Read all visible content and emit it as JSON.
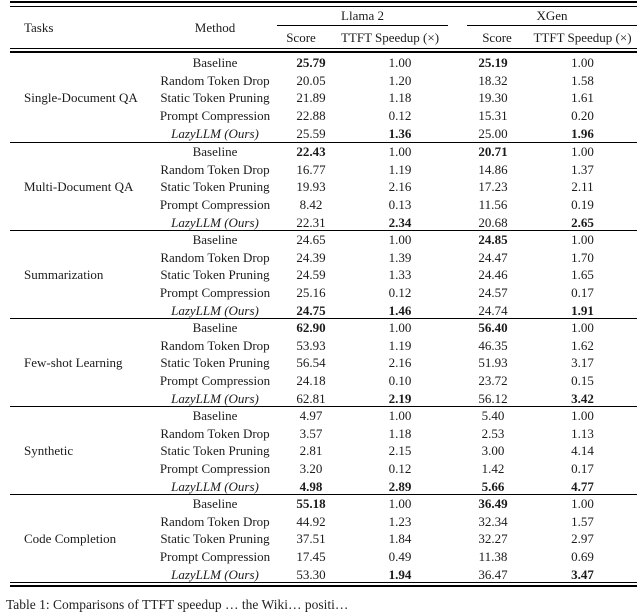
{
  "page": {
    "background": "#ffffff",
    "ink": "#1b1b1b",
    "rule_color": "#000000"
  },
  "header": {
    "tasks": "Tasks",
    "method": "Method",
    "group_llama": "Llama 2",
    "group_xgen": "XGen",
    "score": "Score",
    "ttft": "TTFT Speedup (×)"
  },
  "chart_data": {
    "type": "table",
    "columns": [
      "Tasks",
      "Method",
      "Llama 2 Score",
      "Llama 2 TTFT Speedup (×)",
      "XGen Score",
      "XGen TTFT Speedup (×)"
    ],
    "groups": [
      {
        "task": "Single-Document QA",
        "rows": [
          {
            "method": "Baseline",
            "italic": false,
            "values": [
              "25.79",
              "1.00",
              "25.19",
              "1.00"
            ],
            "bold": [
              true,
              false,
              true,
              false
            ]
          },
          {
            "method": "Random Token Drop",
            "italic": false,
            "values": [
              "20.05",
              "1.20",
              "18.32",
              "1.58"
            ],
            "bold": [
              false,
              false,
              false,
              false
            ]
          },
          {
            "method": "Static Token Pruning",
            "italic": false,
            "values": [
              "21.89",
              "1.18",
              "19.30",
              "1.61"
            ],
            "bold": [
              false,
              false,
              false,
              false
            ]
          },
          {
            "method": "Prompt Compression",
            "italic": false,
            "values": [
              "22.88",
              "0.12",
              "15.31",
              "0.20"
            ],
            "bold": [
              false,
              false,
              false,
              false
            ]
          },
          {
            "method": "LazyLLM (Ours)",
            "italic": true,
            "values": [
              "25.59",
              "1.36",
              "25.00",
              "1.96"
            ],
            "bold": [
              false,
              true,
              false,
              true
            ]
          }
        ]
      },
      {
        "task": "Multi-Document QA",
        "rows": [
          {
            "method": "Baseline",
            "italic": false,
            "values": [
              "22.43",
              "1.00",
              "20.71",
              "1.00"
            ],
            "bold": [
              true,
              false,
              true,
              false
            ]
          },
          {
            "method": "Random Token Drop",
            "italic": false,
            "values": [
              "16.77",
              "1.19",
              "14.86",
              "1.37"
            ],
            "bold": [
              false,
              false,
              false,
              false
            ]
          },
          {
            "method": "Static Token Pruning",
            "italic": false,
            "values": [
              "19.93",
              "2.16",
              "17.23",
              "2.11"
            ],
            "bold": [
              false,
              false,
              false,
              false
            ]
          },
          {
            "method": "Prompt Compression",
            "italic": false,
            "values": [
              "8.42",
              "0.13",
              "11.56",
              "0.19"
            ],
            "bold": [
              false,
              false,
              false,
              false
            ]
          },
          {
            "method": "LazyLLM (Ours)",
            "italic": true,
            "values": [
              "22.31",
              "2.34",
              "20.68",
              "2.65"
            ],
            "bold": [
              false,
              true,
              false,
              true
            ]
          }
        ]
      },
      {
        "task": "Summarization",
        "rows": [
          {
            "method": "Baseline",
            "italic": false,
            "values": [
              "24.65",
              "1.00",
              "24.85",
              "1.00"
            ],
            "bold": [
              false,
              false,
              true,
              false
            ]
          },
          {
            "method": "Random Token Drop",
            "italic": false,
            "values": [
              "24.39",
              "1.39",
              "24.47",
              "1.70"
            ],
            "bold": [
              false,
              false,
              false,
              false
            ]
          },
          {
            "method": "Static Token Pruning",
            "italic": false,
            "values": [
              "24.59",
              "1.33",
              "24.46",
              "1.65"
            ],
            "bold": [
              false,
              false,
              false,
              false
            ]
          },
          {
            "method": "Prompt Compression",
            "italic": false,
            "values": [
              "25.16",
              "0.12",
              "24.57",
              "0.17"
            ],
            "bold": [
              false,
              false,
              false,
              false
            ]
          },
          {
            "method": "LazyLLM (Ours)",
            "italic": true,
            "values": [
              "24.75",
              "1.46",
              "24.74",
              "1.91"
            ],
            "bold": [
              true,
              true,
              false,
              true
            ]
          }
        ]
      },
      {
        "task": "Few-shot Learning",
        "rows": [
          {
            "method": "Baseline",
            "italic": false,
            "values": [
              "62.90",
              "1.00",
              "56.40",
              "1.00"
            ],
            "bold": [
              true,
              false,
              true,
              false
            ]
          },
          {
            "method": "Random Token Drop",
            "italic": false,
            "values": [
              "53.93",
              "1.19",
              "46.35",
              "1.62"
            ],
            "bold": [
              false,
              false,
              false,
              false
            ]
          },
          {
            "method": "Static Token Pruning",
            "italic": false,
            "values": [
              "56.54",
              "2.16",
              "51.93",
              "3.17"
            ],
            "bold": [
              false,
              false,
              false,
              false
            ]
          },
          {
            "method": "Prompt Compression",
            "italic": false,
            "values": [
              "24.18",
              "0.10",
              "23.72",
              "0.15"
            ],
            "bold": [
              false,
              false,
              false,
              false
            ]
          },
          {
            "method": "LazyLLM (Ours)",
            "italic": true,
            "values": [
              "62.81",
              "2.19",
              "56.12",
              "3.42"
            ],
            "bold": [
              false,
              true,
              false,
              true
            ]
          }
        ]
      },
      {
        "task": "Synthetic",
        "rows": [
          {
            "method": "Baseline",
            "italic": false,
            "values": [
              "4.97",
              "1.00",
              "5.40",
              "1.00"
            ],
            "bold": [
              false,
              false,
              false,
              false
            ]
          },
          {
            "method": "Random Token Drop",
            "italic": false,
            "values": [
              "3.57",
              "1.18",
              "2.53",
              "1.13"
            ],
            "bold": [
              false,
              false,
              false,
              false
            ]
          },
          {
            "method": "Static Token Pruning",
            "italic": false,
            "values": [
              "2.81",
              "2.15",
              "3.00",
              "4.14"
            ],
            "bold": [
              false,
              false,
              false,
              false
            ]
          },
          {
            "method": "Prompt Compression",
            "italic": false,
            "values": [
              "3.20",
              "0.12",
              "1.42",
              "0.17"
            ],
            "bold": [
              false,
              false,
              false,
              false
            ]
          },
          {
            "method": "LazyLLM (Ours)",
            "italic": true,
            "values": [
              "4.98",
              "2.89",
              "5.66",
              "4.77"
            ],
            "bold": [
              true,
              true,
              true,
              true
            ]
          }
        ]
      },
      {
        "task": "Code Completion",
        "rows": [
          {
            "method": "Baseline",
            "italic": false,
            "values": [
              "55.18",
              "1.00",
              "36.49",
              "1.00"
            ],
            "bold": [
              true,
              false,
              true,
              false
            ]
          },
          {
            "method": "Random Token Drop",
            "italic": false,
            "values": [
              "44.92",
              "1.23",
              "32.34",
              "1.57"
            ],
            "bold": [
              false,
              false,
              false,
              false
            ]
          },
          {
            "method": "Static Token Pruning",
            "italic": false,
            "values": [
              "37.51",
              "1.84",
              "32.27",
              "2.97"
            ],
            "bold": [
              false,
              false,
              false,
              false
            ]
          },
          {
            "method": "Prompt Compression",
            "italic": false,
            "values": [
              "17.45",
              "0.49",
              "11.38",
              "0.69"
            ],
            "bold": [
              false,
              false,
              false,
              false
            ]
          },
          {
            "method": "LazyLLM (Ours)",
            "italic": true,
            "values": [
              "53.30",
              "1.94",
              "36.47",
              "3.47"
            ],
            "bold": [
              false,
              true,
              false,
              true
            ]
          }
        ]
      }
    ]
  },
  "caption": "Table 1: Comparisons of TTFT speedup … the Wiki… positi…"
}
